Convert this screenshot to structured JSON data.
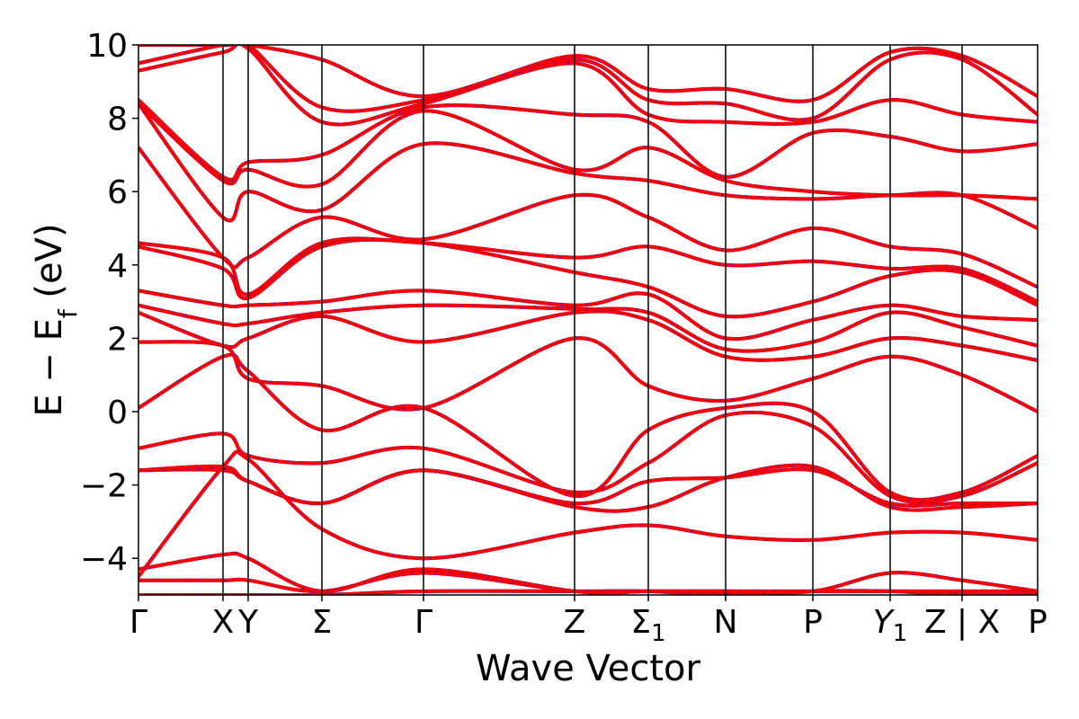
{
  "chart_data": {
    "type": "line",
    "title": "",
    "xlabel": "Wave Vector",
    "ylabel": "E − E",
    "ylabel_sub": "f",
    "ylabel_unit": " (eV)",
    "ylim": [
      -5,
      10
    ],
    "xlim": [
      0,
      1
    ],
    "grid": false,
    "y_ticks": [
      {
        "value": 10,
        "label": "10"
      },
      {
        "value": 8,
        "label": "8"
      },
      {
        "value": 6,
        "label": "6"
      },
      {
        "value": 4,
        "label": "4"
      },
      {
        "value": 2,
        "label": "2"
      },
      {
        "value": 0,
        "label": "0"
      },
      {
        "value": -2,
        "label": "−2"
      },
      {
        "value": -4,
        "label": "−4"
      }
    ],
    "kpoints": [
      {
        "pos": 0.0,
        "label": "Γ"
      },
      {
        "pos": 0.094,
        "label": "X"
      },
      {
        "pos": 0.122,
        "label": "Y"
      },
      {
        "pos": 0.204,
        "label": "Σ"
      },
      {
        "pos": 0.317,
        "label": "Γ"
      },
      {
        "pos": 0.485,
        "label": "Z"
      },
      {
        "pos": 0.567,
        "label": "Σ",
        "sub": "1"
      },
      {
        "pos": 0.653,
        "label": "N"
      },
      {
        "pos": 0.75,
        "label": "P"
      },
      {
        "pos": 0.836,
        "label": "Y",
        "sub": "1"
      },
      {
        "pos": 0.916,
        "label": "Z | X"
      },
      {
        "pos": 1.0,
        "label": "P"
      }
    ],
    "series_style": {
      "base_color": "#0000ff",
      "overlay_color": "#ff0000",
      "overlay_dash": true
    },
    "x": [
      0.0,
      0.094,
      0.122,
      0.204,
      0.317,
      0.485,
      0.567,
      0.653,
      0.75,
      0.836,
      0.916,
      1.0
    ],
    "bands": [
      [
        -5.0,
        -5.0,
        -5.0,
        -5.0,
        -4.9,
        -4.9,
        -4.9,
        -5.0,
        -4.9,
        -4.9,
        -5.0,
        -5.0
      ],
      [
        -4.6,
        -4.6,
        -4.6,
        -4.9,
        -4.4,
        -4.9,
        -4.9,
        -4.9,
        -4.9,
        -4.9,
        -4.9,
        -4.9
      ],
      [
        -4.3,
        -3.9,
        -4.0,
        -4.9,
        -4.3,
        -4.9,
        -4.9,
        -4.9,
        -4.9,
        -4.4,
        -4.6,
        -4.9
      ],
      [
        -4.5,
        -1.5,
        -1.3,
        -3.2,
        -4.0,
        -3.3,
        -3.1,
        -3.4,
        -3.5,
        -3.3,
        -3.3,
        -3.5
      ],
      [
        -1.6,
        -1.6,
        -1.9,
        -2.5,
        -1.6,
        -2.6,
        -2.6,
        -1.8,
        -1.5,
        -2.6,
        -2.6,
        -2.5
      ],
      [
        -1.6,
        -1.5,
        -1.9,
        -2.5,
        -1.6,
        -2.5,
        -1.9,
        -1.8,
        -1.6,
        -2.5,
        -2.5,
        -2.5
      ],
      [
        -1.0,
        -0.6,
        -1.2,
        -1.4,
        -1.0,
        -2.2,
        -1.4,
        -0.1,
        -0.4,
        -2.3,
        -2.3,
        -1.4
      ],
      [
        0.1,
        1.5,
        1.1,
        -0.5,
        0.1,
        -2.3,
        -0.5,
        0.1,
        0.0,
        -2.2,
        -2.2,
        -1.2
      ],
      [
        1.9,
        1.8,
        0.9,
        0.7,
        0.1,
        2.0,
        0.7,
        0.3,
        0.9,
        1.5,
        1.0,
        0.0
      ],
      [
        2.7,
        1.8,
        2.0,
        2.6,
        1.9,
        2.7,
        2.5,
        1.5,
        1.5,
        2.0,
        1.8,
        1.4
      ],
      [
        2.9,
        2.4,
        2.4,
        2.7,
        2.9,
        2.8,
        2.7,
        1.7,
        1.9,
        2.7,
        2.3,
        1.8
      ],
      [
        3.3,
        2.9,
        2.9,
        3.0,
        3.3,
        2.9,
        3.2,
        2.0,
        2.5,
        2.9,
        2.6,
        2.5
      ],
      [
        4.5,
        3.9,
        3.1,
        4.5,
        4.6,
        3.8,
        3.4,
        2.6,
        3.0,
        3.7,
        3.8,
        2.9
      ],
      [
        4.6,
        4.2,
        3.2,
        4.6,
        4.6,
        4.2,
        4.5,
        4.0,
        4.1,
        3.9,
        3.9,
        3.0
      ],
      [
        7.2,
        4.2,
        4.2,
        5.3,
        4.7,
        5.9,
        5.3,
        4.4,
        5.0,
        4.5,
        4.3,
        3.4
      ],
      [
        8.4,
        5.3,
        6.0,
        5.5,
        7.3,
        6.5,
        6.3,
        5.9,
        5.8,
        5.9,
        5.9,
        5.0
      ],
      [
        8.4,
        6.3,
        6.6,
        6.2,
        8.2,
        6.6,
        7.2,
        6.3,
        6.0,
        5.9,
        5.9,
        5.8
      ],
      [
        8.5,
        6.4,
        6.8,
        7.0,
        8.3,
        8.1,
        7.9,
        6.4,
        7.6,
        7.5,
        7.1,
        7.3
      ],
      [
        9.3,
        9.8,
        9.9,
        7.9,
        8.4,
        9.5,
        8.1,
        7.9,
        7.9,
        8.5,
        8.1,
        7.9
      ],
      [
        9.5,
        10.0,
        10.0,
        8.3,
        8.5,
        9.6,
        8.5,
        8.4,
        8.0,
        9.6,
        9.6,
        8.1
      ],
      [
        10.0,
        10.0,
        10.0,
        9.6,
        8.6,
        9.7,
        8.8,
        8.8,
        8.5,
        9.8,
        9.7,
        8.6
      ]
    ]
  }
}
